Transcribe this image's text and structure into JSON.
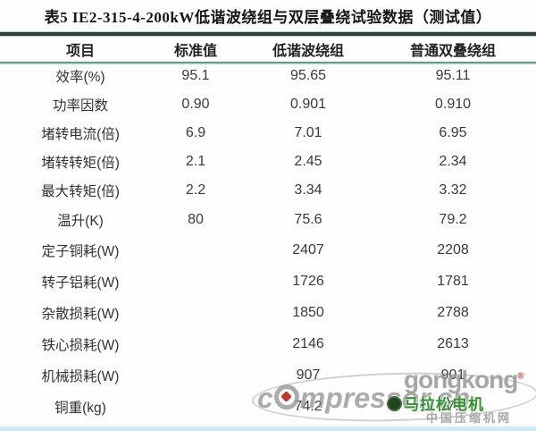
{
  "title": "表5  IE2-315-4-200kW低谐波绕组与双层叠绕试验数据（测试值）",
  "table": {
    "columns": [
      "项目",
      "标准值",
      "低谐波绕组",
      "普通双叠绕组"
    ],
    "rows": [
      {
        "item": "效率(%)",
        "standard": "95.1",
        "low_harmonic": "95.65",
        "double_lap": "95.11"
      },
      {
        "item": "功率因数",
        "standard": "0.90",
        "low_harmonic": "0.901",
        "double_lap": "0.910"
      },
      {
        "item": "堵转电流(倍)",
        "standard": "6.9",
        "low_harmonic": "7.01",
        "double_lap": "6.95"
      },
      {
        "item": "堵转转矩(倍)",
        "standard": "2.1",
        "low_harmonic": "2.45",
        "double_lap": "2.34"
      },
      {
        "item": "最大转矩(倍)",
        "standard": "2.2",
        "low_harmonic": "3.34",
        "double_lap": "3.32"
      },
      {
        "item": "温升(K)",
        "standard": "80",
        "low_harmonic": "75.6",
        "double_lap": "79.2"
      },
      {
        "item": "定子铜耗(W)",
        "standard": "",
        "low_harmonic": "2407",
        "double_lap": "2208"
      },
      {
        "item": "转子铝耗(W)",
        "standard": "",
        "low_harmonic": "1726",
        "double_lap": "1781"
      },
      {
        "item": "杂散损耗(W)",
        "standard": "",
        "low_harmonic": "1850",
        "double_lap": "2788"
      },
      {
        "item": "铁心损耗(W)",
        "standard": "",
        "low_harmonic": "2146",
        "double_lap": "2613"
      },
      {
        "item": "机械损耗(W)",
        "standard": "",
        "low_harmonic": "907",
        "double_lap": "901"
      },
      {
        "item": "铜重(kg)",
        "standard": "",
        "low_harmonic": "74.2",
        "double_lap": "87.6"
      }
    ]
  },
  "watermark": {
    "gongkong": "gongkong",
    "registered": "®",
    "compressor_prefix": "c",
    "compressor_suffix": "mpressor.cn",
    "brand": "马拉松电机",
    "site": "中国压缩机网"
  },
  "colors": {
    "rule_dark": "#323f3b",
    "rule_teal": "#a9d6c9",
    "rule_mid": "#4e8d7e",
    "bottom_strip": "#cdeaf7",
    "watermark_gray": "#9a9a9a",
    "brand_green": "#3a8f3a",
    "logo_red": "#c0392b"
  }
}
